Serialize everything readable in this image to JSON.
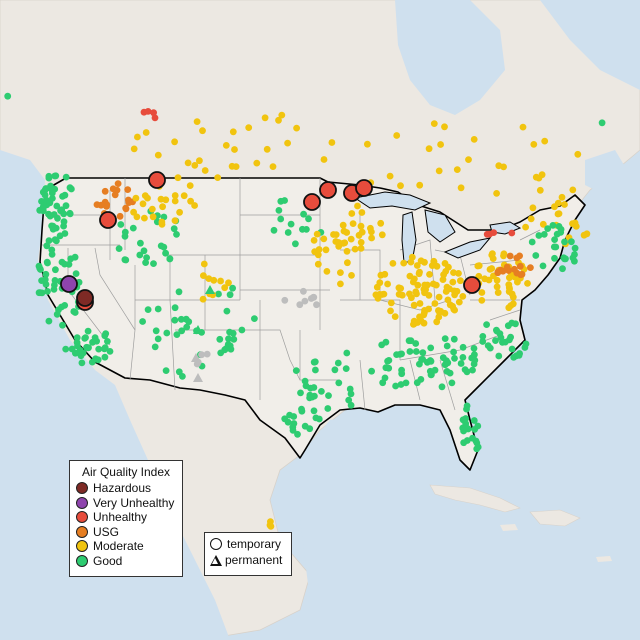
{
  "legend": {
    "title": "Air Quality Index",
    "categories": [
      {
        "label": "Hazardous",
        "color": "#7e2a25"
      },
      {
        "label": "Very Unhealthy",
        "color": "#8e44ad"
      },
      {
        "label": "Unhealthy",
        "color": "#e74c3c"
      },
      {
        "label": "USG",
        "color": "#e67e22"
      },
      {
        "label": "Moderate",
        "color": "#f1c40f"
      },
      {
        "label": "Good",
        "color": "#2ecc71"
      }
    ]
  },
  "type_legend": {
    "temporary": "temporary",
    "permanent": "permanent"
  },
  "colors": {
    "water": "#cfe0ee",
    "land": "#efebe6",
    "us_land": "#f1eee9",
    "no_data": "#bdbdbd"
  }
}
